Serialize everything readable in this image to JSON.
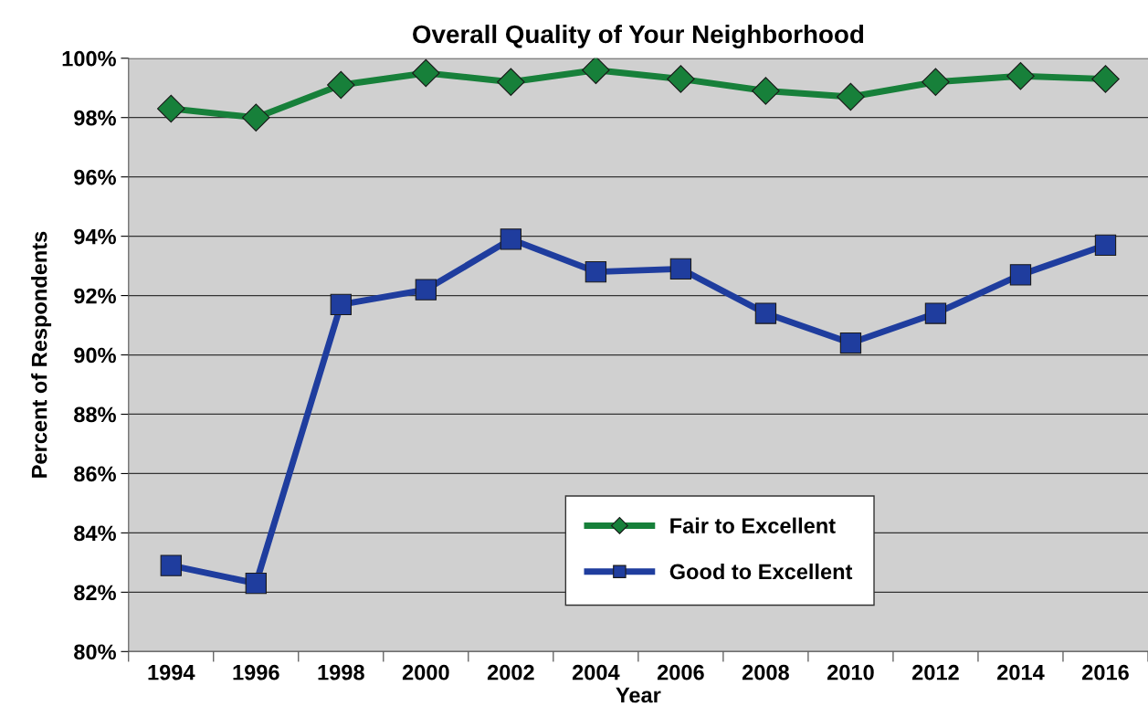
{
  "chart_data": {
    "type": "line",
    "title": "Overall Quality of Your Neighborhood",
    "xlabel": "Year",
    "ylabel": "Percent of Respondents",
    "categories": [
      "1994",
      "1996",
      "1998",
      "2000",
      "2002",
      "2004",
      "2006",
      "2008",
      "2010",
      "2012",
      "2014",
      "2016"
    ],
    "series": [
      {
        "name": "Fair to Excellent",
        "color": "#17803a",
        "marker": "diamond",
        "values": [
          98.3,
          98.0,
          99.1,
          99.5,
          99.2,
          99.6,
          99.3,
          98.9,
          98.7,
          99.2,
          99.4,
          99.3
        ]
      },
      {
        "name": "Good to Excellent",
        "color": "#1f3d9e",
        "marker": "square",
        "values": [
          82.9,
          82.3,
          91.7,
          92.2,
          93.9,
          92.8,
          92.9,
          91.4,
          90.4,
          91.4,
          92.7,
          93.7
        ]
      }
    ],
    "ylim": [
      80,
      100
    ],
    "yticks": [
      {
        "value": 80,
        "label": "80%"
      },
      {
        "value": 82,
        "label": "82%"
      },
      {
        "value": 84,
        "label": "84%"
      },
      {
        "value": 86,
        "label": "86%"
      },
      {
        "value": 88,
        "label": "88%"
      },
      {
        "value": 90,
        "label": "90%"
      },
      {
        "value": 92,
        "label": "92%"
      },
      {
        "value": 94,
        "label": "94%"
      },
      {
        "value": 96,
        "label": "96%"
      },
      {
        "value": 98,
        "label": "98%"
      },
      {
        "value": 100,
        "label": "100%"
      }
    ],
    "grid": "y",
    "legend": "bottom",
    "line_style": "solid"
  }
}
